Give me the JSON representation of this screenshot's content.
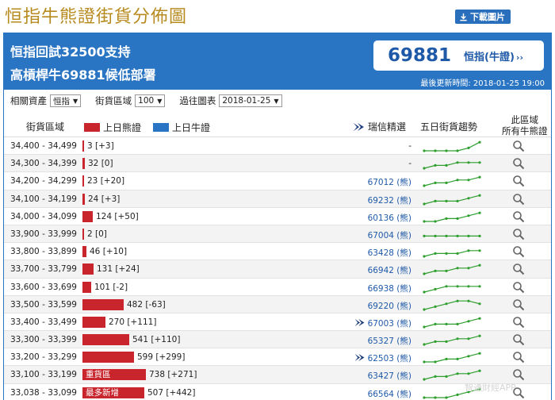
{
  "page_title": "恒指牛熊證街貨分佈圖",
  "download_label": "下載圖片",
  "header": {
    "line1": "恒指回試32500支持",
    "line2": "高槓桿牛69881候低部署",
    "price_value": "69881",
    "price_link": "恒指(牛證)",
    "update_time": "最後更新時間: 2018-01-25 19:00"
  },
  "filters": {
    "asset_label": "相關資產",
    "asset_value": "恒指",
    "range_label": "街貨區域",
    "range_value": "100",
    "history_label": "過往圖表",
    "history_value": "2018-01-25"
  },
  "columns": {
    "range": "街貨區域",
    "bear_legend": "上日熊證",
    "bull_legend": "上日牛證",
    "ubs": "瑞信精選",
    "trend": "五日街貨趨勢",
    "cbbc_line1": "此區域",
    "cbbc_line2": "所有牛熊證"
  },
  "colors": {
    "bear": "#c8252c",
    "bull": "#2a74c4",
    "accent": "#2a74c4",
    "trend": "#2e9e2e"
  },
  "rows": [
    {
      "range": "34,400 - 34,499",
      "value": 3,
      "text": "3 [+3]",
      "ubs": "-",
      "logo": false,
      "trend": [
        1,
        1,
        1,
        1,
        2,
        4
      ]
    },
    {
      "range": "34,300 - 34,399",
      "value": 32,
      "text": "32 [0]",
      "ubs": "-",
      "logo": false,
      "trend": [
        1,
        2,
        2,
        3,
        3,
        3
      ]
    },
    {
      "range": "34,200 - 34,299",
      "value": 23,
      "text": "23 [+20]",
      "ubs": "67012 (熊)",
      "logo": false,
      "trend": [
        1,
        2,
        2,
        3,
        3,
        4
      ]
    },
    {
      "range": "34,100 - 34,199",
      "value": 24,
      "text": "24 [+3]",
      "ubs": "69232 (熊)",
      "logo": false,
      "trend": [
        1,
        2,
        2,
        2,
        3,
        4
      ]
    },
    {
      "range": "34,000 - 34,099",
      "value": 124,
      "text": "124 [+50]",
      "ubs": "60136 (熊)",
      "logo": false,
      "trend": [
        1,
        1,
        2,
        2,
        3,
        4
      ]
    },
    {
      "range": "33,900 - 33,999",
      "value": 2,
      "text": "2 [0]",
      "ubs": "67004 (熊)",
      "logo": false,
      "trend": [
        2,
        2,
        2,
        2,
        2,
        2
      ]
    },
    {
      "range": "33,800 - 33,899",
      "value": 46,
      "text": "46 [+10]",
      "ubs": "63428 (熊)",
      "logo": false,
      "trend": [
        1,
        2,
        2,
        2,
        3,
        3
      ]
    },
    {
      "range": "33,700 - 33,799",
      "value": 131,
      "text": "131 [+24]",
      "ubs": "66942 (熊)",
      "logo": false,
      "trend": [
        1,
        2,
        2,
        3,
        3,
        4
      ]
    },
    {
      "range": "33,600 - 33,699",
      "value": 101,
      "text": "101 [-2]",
      "ubs": "66938 (熊)",
      "logo": false,
      "trend": [
        1,
        2,
        3,
        3,
        3,
        3
      ]
    },
    {
      "range": "33,500 - 33,599",
      "value": 482,
      "text": "482 [-63]",
      "ubs": "69220 (熊)",
      "logo": false,
      "trend": [
        1,
        2,
        3,
        4,
        4,
        3
      ]
    },
    {
      "range": "33,400 - 33,499",
      "value": 270,
      "text": "270 [+111]",
      "ubs": "67003 (熊)",
      "logo": true,
      "trend": [
        1,
        2,
        2,
        2,
        3,
        4
      ]
    },
    {
      "range": "33,300 - 33,399",
      "value": 541,
      "text": "541 [+110]",
      "ubs": "65327 (熊)",
      "logo": false,
      "trend": [
        1,
        2,
        2,
        3,
        3,
        4
      ]
    },
    {
      "range": "33,200 - 33,299",
      "value": 599,
      "text": "599 [+299]",
      "ubs": "62503 (熊)",
      "logo": true,
      "trend": [
        1,
        1,
        2,
        2,
        3,
        4
      ]
    },
    {
      "range": "33,100 - 33,199",
      "value": 738,
      "text": "738 [+271]",
      "ubs": "63427 (熊)",
      "logo": false,
      "trend": [
        1,
        2,
        2,
        3,
        3,
        4
      ],
      "tag": "重貨區"
    },
    {
      "range": "33,038 - 33,099",
      "value": 507,
      "text": "507 [+442]",
      "ubs": "66564 (熊)",
      "logo": false,
      "trend": [
        1,
        1,
        1,
        2,
        3,
        4
      ],
      "tag": "最多新增"
    }
  ],
  "watermark": "智通財經APP"
}
